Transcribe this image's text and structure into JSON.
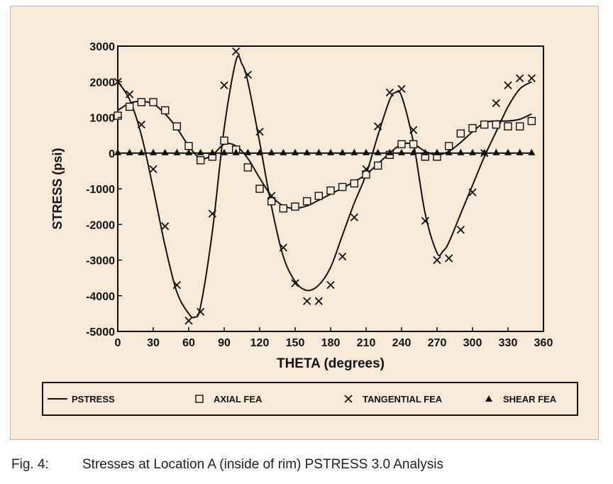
{
  "caption": {
    "number": "Fig. 4:",
    "text": "Stresses at Location A (inside of rim) PSTRESS 3.0 Analysis"
  },
  "colors": {
    "background": "#f7ead9",
    "ink": "#111111"
  },
  "chart_data": {
    "type": "line",
    "xlabel": "THETA (degrees)",
    "ylabel": "STRESS (psi)",
    "xlim": [
      0,
      360
    ],
    "ylim": [
      -5000,
      3000
    ],
    "xticks": [
      0,
      30,
      60,
      90,
      120,
      150,
      180,
      210,
      240,
      270,
      300,
      330,
      360
    ],
    "yticks": [
      3000,
      2000,
      1000,
      0,
      -1000,
      -2000,
      -3000,
      -4000,
      -5000
    ],
    "grid": false,
    "legend_position": "bottom",
    "series": [
      {
        "name": "PSTRESS",
        "mark": "line",
        "x": [
          0,
          10,
          20,
          30,
          40,
          50,
          60,
          70,
          80,
          90,
          100,
          110,
          120,
          130,
          140,
          150,
          160,
          170,
          180,
          190,
          200,
          210,
          220,
          230,
          240,
          250,
          260,
          270,
          280,
          290,
          300,
          310,
          320,
          330,
          340,
          350
        ],
        "y": [
          1200,
          1400,
          1450,
          1380,
          1100,
          700,
          200,
          -150,
          -50,
          250,
          200,
          -150,
          -700,
          -1200,
          -1480,
          -1550,
          -1480,
          -1320,
          -1150,
          -980,
          -800,
          -600,
          -300,
          0,
          250,
          250,
          50,
          -50,
          50,
          300,
          600,
          850,
          900,
          900,
          950,
          1100
        ]
      },
      {
        "name": "PSTRESS",
        "mark": "line",
        "x": [
          0,
          10,
          20,
          30,
          40,
          50,
          60,
          65,
          70,
          80,
          90,
          100,
          105,
          110,
          120,
          130,
          140,
          150,
          160,
          170,
          180,
          190,
          200,
          210,
          220,
          230,
          235,
          240,
          250,
          260,
          270,
          275,
          280,
          290,
          300,
          310,
          320,
          330,
          340,
          350
        ],
        "y": [
          2000,
          1500,
          500,
          -1000,
          -2600,
          -3900,
          -4500,
          -4600,
          -4300,
          -2200,
          700,
          2600,
          2500,
          2000,
          300,
          -1500,
          -2900,
          -3600,
          -3850,
          -3700,
          -3200,
          -2300,
          -1400,
          -600,
          500,
          1500,
          1700,
          1600,
          300,
          -1700,
          -2800,
          -2750,
          -2500,
          -1700,
          -900,
          -100,
          600,
          1300,
          1800,
          2000
        ]
      },
      {
        "name": "AXIAL FEA",
        "mark": "square",
        "x": [
          0,
          10,
          20,
          30,
          40,
          50,
          60,
          70,
          80,
          90,
          100,
          110,
          120,
          130,
          140,
          150,
          160,
          170,
          180,
          190,
          200,
          210,
          220,
          230,
          240,
          250,
          260,
          270,
          280,
          290,
          300,
          310,
          320,
          330,
          340,
          350
        ],
        "y": [
          1050,
          1300,
          1430,
          1430,
          1200,
          750,
          200,
          -200,
          -100,
          350,
          100,
          -400,
          -1000,
          -1350,
          -1550,
          -1500,
          -1350,
          -1200,
          -1050,
          -950,
          -850,
          -600,
          -350,
          -50,
          250,
          250,
          -100,
          -100,
          200,
          550,
          700,
          800,
          800,
          750,
          750,
          900
        ]
      },
      {
        "name": "TANGENTIAL FEA",
        "mark": "x",
        "x": [
          0,
          10,
          20,
          30,
          40,
          50,
          60,
          70,
          80,
          90,
          100,
          110,
          120,
          130,
          140,
          150,
          160,
          170,
          180,
          190,
          200,
          210,
          220,
          230,
          240,
          250,
          260,
          270,
          280,
          290,
          300,
          310,
          320,
          330,
          340,
          350
        ],
        "y": [
          2000,
          1650,
          800,
          -450,
          -2050,
          -3700,
          -4700,
          -4450,
          -1700,
          1900,
          2850,
          2200,
          600,
          -1200,
          -2650,
          -3650,
          -4150,
          -4150,
          -3700,
          -2900,
          -1800,
          -450,
          750,
          1700,
          1800,
          650,
          -1900,
          -3000,
          -2950,
          -2150,
          -1100,
          0,
          1400,
          1900,
          2100,
          2100
        ]
      },
      {
        "name": "SHEAR FEA",
        "mark": "triangle",
        "x": [
          0,
          10,
          20,
          30,
          40,
          50,
          60,
          70,
          80,
          90,
          100,
          110,
          120,
          130,
          140,
          150,
          160,
          170,
          180,
          190,
          200,
          210,
          220,
          230,
          240,
          250,
          260,
          270,
          280,
          290,
          300,
          310,
          320,
          330,
          340,
          350
        ],
        "y": [
          0,
          0,
          0,
          0,
          0,
          0,
          0,
          0,
          0,
          0,
          0,
          0,
          0,
          0,
          0,
          0,
          0,
          0,
          0,
          0,
          0,
          0,
          0,
          0,
          0,
          0,
          0,
          0,
          0,
          0,
          0,
          0,
          0,
          0,
          0,
          0
        ]
      }
    ],
    "legend": [
      {
        "label": "PSTRESS",
        "mark": "line"
      },
      {
        "label": "AXIAL FEA",
        "mark": "square"
      },
      {
        "label": "TANGENTIAL FEA",
        "mark": "x"
      },
      {
        "label": "SHEAR FEA",
        "mark": "triangle"
      }
    ]
  }
}
